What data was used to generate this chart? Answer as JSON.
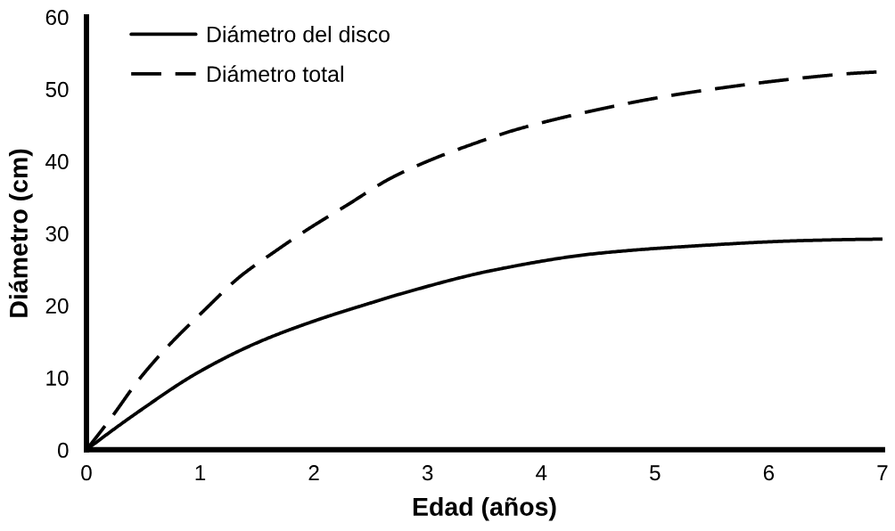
{
  "chart_data": {
    "type": "line",
    "xlabel": "Edad (años)",
    "ylabel": "Diámetro (cm)",
    "xlim": [
      0,
      7
    ],
    "xticks": [
      0,
      1,
      2,
      3,
      4,
      5,
      6,
      7
    ],
    "ylim": [
      0,
      60
    ],
    "yticks": [
      0,
      10,
      20,
      30,
      40,
      50,
      60
    ],
    "grid": false,
    "legend": "top left",
    "series": [
      {
        "name": "Diámetro del disco",
        "color": "#000000",
        "line_style": "solid",
        "x": [
          0,
          0.46,
          0.98,
          1.51,
          2.03,
          2.53,
          2.76,
          3.58,
          4.48,
          5.39,
          6.3,
          7
        ],
        "values": [
          0,
          5.3,
          10.7,
          14.9,
          18.0,
          20.5,
          21.6,
          24.9,
          27.2,
          28.3,
          29.0,
          29.2
        ]
      },
      {
        "name": "Diámetro total",
        "color": "#000000",
        "line_style": "dashed",
        "x": [
          0,
          0.23,
          0.46,
          0.72,
          1.04,
          1.35,
          1.64,
          1.95,
          2.29,
          2.67,
          3.03,
          3.4,
          3.76,
          4.12,
          4.48,
          4.85,
          5.21,
          5.6,
          5.99,
          6.39,
          6.75,
          7
        ],
        "values": [
          0,
          4.7,
          9.7,
          14.4,
          19.4,
          24.0,
          27.3,
          30.6,
          33.9,
          37.6,
          40.2,
          42.4,
          44.3,
          45.8,
          47.1,
          48.3,
          49.3,
          50.2,
          51.0,
          51.7,
          52.2,
          52.4
        ]
      }
    ]
  }
}
